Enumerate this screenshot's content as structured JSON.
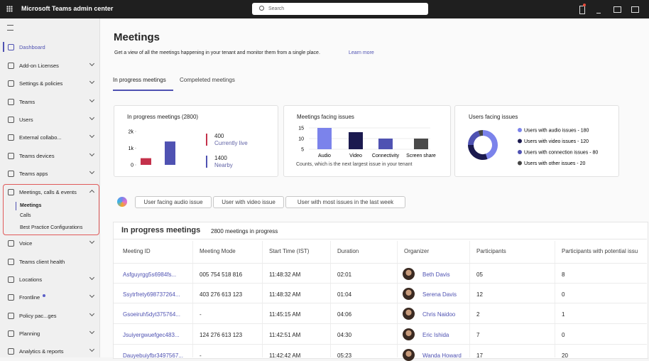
{
  "topbar": {
    "app_name": "Microsoft Teams admin center",
    "search_placeholder": "Search"
  },
  "nav": {
    "items": [
      "Dashboard",
      "Add-on Licenses",
      "Settings & policies",
      "Teams",
      "Users",
      "External collabo...",
      "Teams devices",
      "Teams apps",
      "Meetings, calls & events",
      "Voice",
      "Teams client health",
      "Locations",
      "Frontline",
      "Policy pac...ges",
      "Planning",
      "Analytics & reports"
    ],
    "subitems": [
      "Meetings",
      "Calls",
      "Best Practice Configurations"
    ]
  },
  "page": {
    "title": "Meetings",
    "description": "Get a view of all the meetings happening in your tenant and monitor them from a single place.",
    "learn_more": "Learn more",
    "tabs": [
      "In progress meetings",
      "Compeleted meetings"
    ]
  },
  "cards": [
    {
      "type": "bar",
      "title": "In progress meetings (2800)",
      "ylim": [
        0,
        2000
      ],
      "yticks": [
        0,
        {
          "value": 1000,
          "label": "1k"
        },
        {
          "value": 2000,
          "label": "2k"
        }
      ],
      "series": [
        {
          "name": "Currently live",
          "color": "#c4314b",
          "values": [
            400
          ]
        },
        {
          "name": "Nearby",
          "color": "#4f52b2",
          "values": [
            1400
          ]
        }
      ]
    },
    {
      "type": "bar",
      "title": "Meetings facing issues",
      "categories": [
        "Audio",
        "Video",
        "Connectivity",
        "Screen share"
      ],
      "values": [
        15,
        13,
        10,
        10
      ],
      "colors": [
        "#7b83eb",
        "#1b1a4f",
        "#4f52b2",
        "#4a4a4a"
      ],
      "ylim": [
        5,
        17
      ],
      "yticks": [
        5,
        10,
        15
      ],
      "grid": true,
      "footnote": "Counts, which is the next largest issue in your tenant"
    },
    {
      "type": "donut",
      "title": "Users facing issues",
      "labels": [
        "Users with audio issues - 180",
        "Users with video issues - 120",
        "Users with connection issues - 80",
        "Users with other issues - 20"
      ],
      "values": [
        180,
        120,
        80,
        20
      ],
      "colors": [
        "#7b83eb",
        "#1b1a4f",
        "#4f52b2",
        "#444444"
      ]
    }
  ],
  "chips": [
    "User facing audio issue",
    "User with video issue",
    "User with most issues in the last week"
  ],
  "table": {
    "title": "In progress meetings",
    "subtitle": "2800 meetings in progress",
    "columns": [
      "Meeting ID",
      "Meeting Mode",
      "Start Time (IST)",
      "Duration",
      "Organizer",
      "Participants",
      "Participants with potential issu"
    ],
    "rows": [
      [
        "Asfguyrgg5s6984fs...",
        "005 754 518 816",
        "11:48:32 AM",
        "02:01",
        "Beth Davis",
        "05",
        "8"
      ],
      [
        "Ssytrfrety698737264...",
        "403 276 613 123",
        "11:48:32 AM",
        "01:04",
        "Serena Davis",
        "12",
        "0"
      ],
      [
        "Gsoeiruh5dyt375764...",
        "-",
        "11:45:15 AM",
        "04:06",
        "Chris Naidoo",
        "2",
        "1"
      ],
      [
        "Jsuiyergwuefgec483...",
        "124 276 613 123",
        "11:42:51 AM",
        "04:30",
        "Eric Ishida",
        "7",
        "0"
      ],
      [
        "Dauyebuiyfbr3497567...",
        "-",
        "11:42:42 AM",
        "05:23",
        "Wanda Howard",
        "17",
        "20"
      ]
    ]
  }
}
